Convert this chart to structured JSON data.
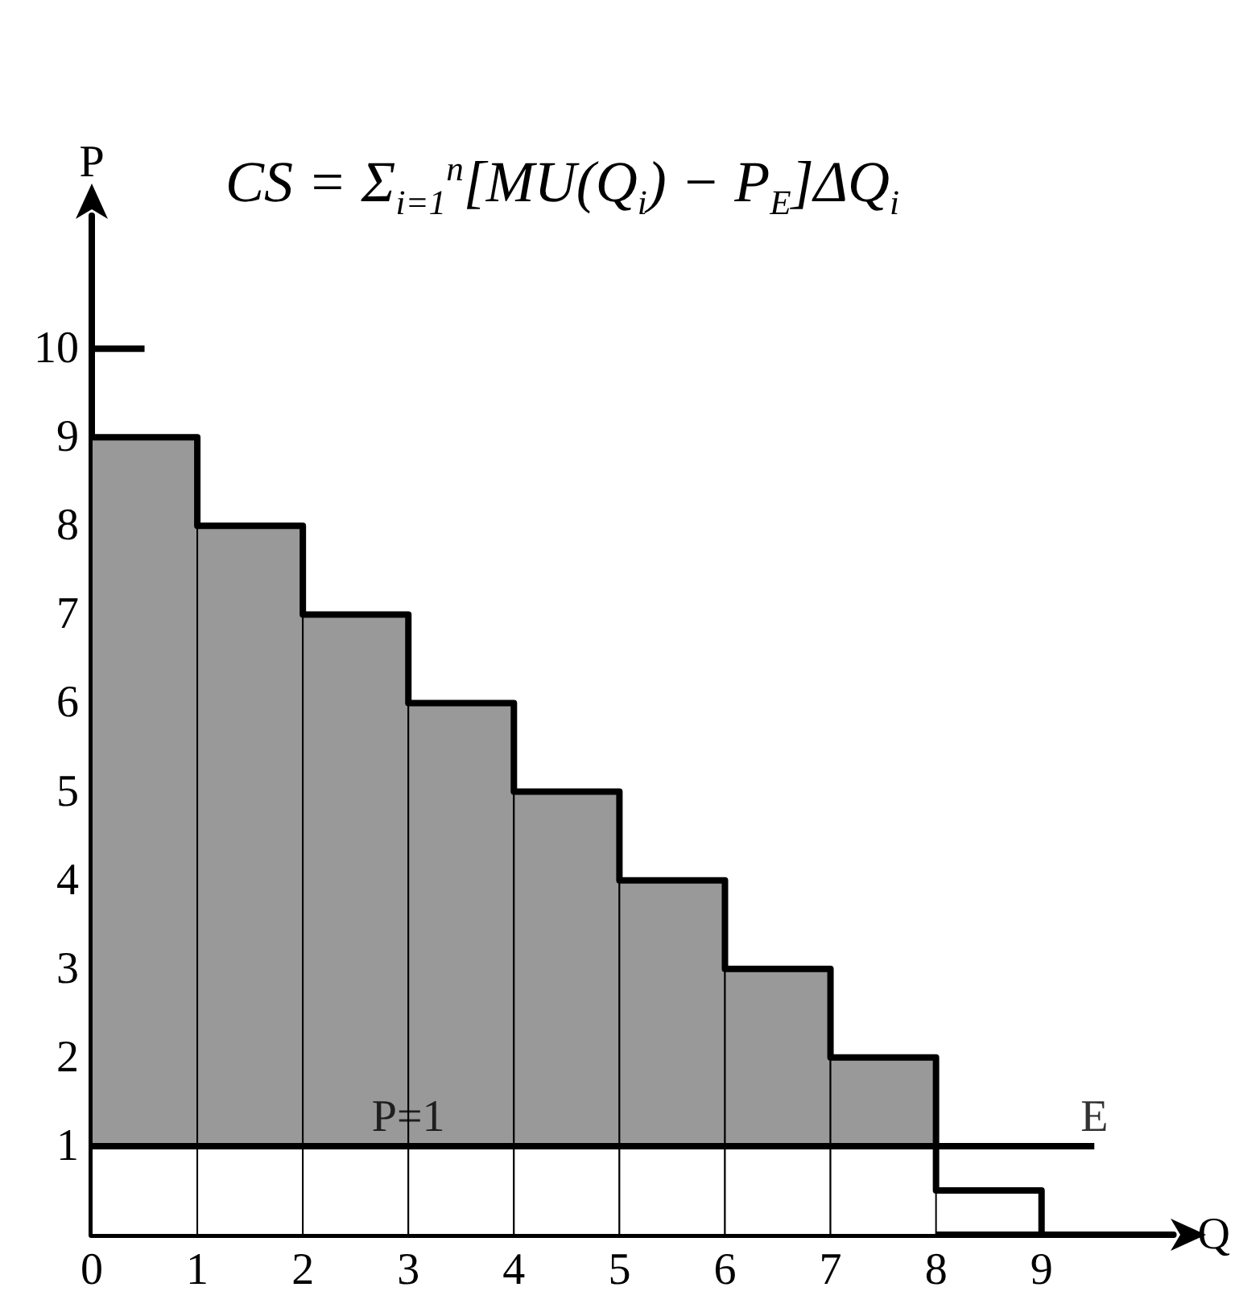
{
  "chart_data": {
    "type": "bar",
    "stacked": true,
    "x": [
      0.5,
      1.5,
      2.5,
      3.5,
      4.5,
      5.5,
      6.5,
      7.5
    ],
    "series": [
      {
        "color": "#ffffff",
        "values": [
          1,
          1,
          1,
          1,
          1,
          1,
          1,
          1
        ]
      },
      {
        "color": "#999999",
        "values": [
          8,
          7,
          6,
          5,
          4,
          3,
          2,
          1
        ]
      },
      {
        "type": "line",
        "color": "#000000",
        "x": [
          0.5,
          0,
          0,
          1,
          1,
          2,
          2,
          3,
          3,
          4,
          4,
          5,
          5,
          6,
          6,
          7,
          7,
          8,
          8,
          9,
          9
        ],
        "values": [
          10,
          10,
          9,
          9,
          8,
          8,
          7,
          7,
          6,
          6,
          5,
          5,
          4,
          4,
          3,
          3,
          2,
          2,
          0.5,
          0.5,
          0
        ]
      },
      {
        "type": "line",
        "color": "#000000",
        "x": [
          0,
          9.5
        ],
        "values": [
          1,
          1
        ]
      }
    ],
    "xlabel": "Q",
    "ylabel": "P",
    "xlim": [
      0,
      10.25
    ],
    "ylim": [
      0,
      11.5
    ],
    "xticks": [
      0,
      1,
      2,
      3,
      4,
      5,
      6,
      7,
      8,
      9
    ],
    "yticks": [
      1,
      2,
      3,
      4,
      5,
      6,
      7,
      8,
      9,
      10
    ],
    "annotations": [
      "CS = Σ$_{i=1}$$^{n}$[MU(Q$_{i}$) − P$_{E}$]ΔQ$_{i}$",
      {
        "text": "P=1",
        "x": 3,
        "y": 1
      },
      {
        "text": "E",
        "x": 9.5,
        "y": 1
      }
    ],
    "line_style": "solid"
  }
}
